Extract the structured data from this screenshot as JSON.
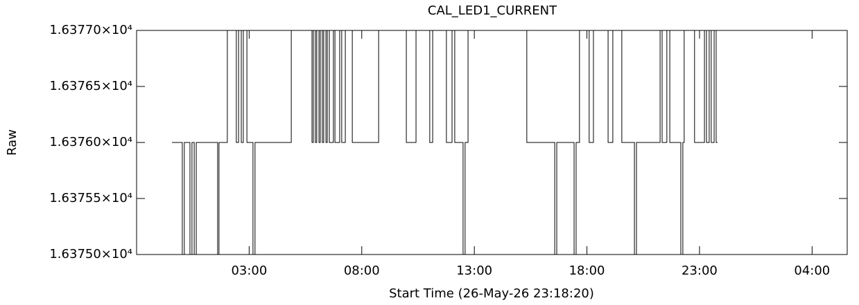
{
  "chart_data": {
    "type": "line",
    "step": "post",
    "title": "CAL_LED1_CURRENT",
    "x_label": "Start Time (26-May-26 23:18:20)",
    "y_label": "Raw",
    "xlim": [
      22,
      53.56
    ],
    "xticks": [
      {
        "value": 27,
        "label": "03:00"
      },
      {
        "value": 32,
        "label": "08:00"
      },
      {
        "value": 37,
        "label": "13:00"
      },
      {
        "value": 42,
        "label": "18:00"
      },
      {
        "value": 47,
        "label": "23:00"
      },
      {
        "value": 52,
        "label": "04:00"
      }
    ],
    "ylim": [
      16375,
      16377
    ],
    "yticks": [
      {
        "value": 16375,
        "label": "1.63750×10⁴"
      },
      {
        "value": 16375.5,
        "label": "1.63755×10⁴"
      },
      {
        "value": 16376,
        "label": "1.63760×10⁴"
      },
      {
        "value": 16376.5,
        "label": "1.63765×10⁴"
      },
      {
        "value": 16377,
        "label": "1.63770×10⁴"
      }
    ],
    "grid": false,
    "series": [
      {
        "name": "CAL_LED1_CURRENT",
        "color": "#000000",
        "x": [
          23.57,
          24.03,
          24.12,
          24.37,
          24.46,
          24.56,
          24.65,
          25.6,
          25.66,
          26.03,
          26.43,
          26.53,
          26.65,
          26.74,
          26.9,
          27.17,
          27.26,
          28.87,
          29.79,
          29.85,
          29.94,
          30.0,
          30.1,
          30.16,
          30.25,
          30.31,
          30.41,
          30.47,
          30.56,
          30.74,
          30.81,
          31.02,
          31.11,
          31.27,
          31.58,
          32.75,
          33.98,
          34.41,
          35.02,
          35.15,
          35.76,
          36.01,
          36.13,
          36.5,
          36.59,
          36.72,
          39.33,
          40.57,
          40.66,
          41.43,
          41.52,
          41.67,
          42.1,
          42.29,
          42.94,
          43.15,
          43.55,
          44.11,
          44.2,
          45.25,
          45.34,
          45.55,
          45.68,
          46.17,
          46.26,
          46.32,
          46.78,
          47.22,
          47.31,
          47.43,
          47.52,
          47.65,
          47.74,
          47.8
        ],
        "values": [
          16376,
          16375,
          16376,
          16375,
          16376,
          16375,
          16376,
          16375,
          16376,
          16377,
          16376,
          16377,
          16376,
          16377,
          16376,
          16375,
          16376,
          16377,
          16376,
          16377,
          16376,
          16377,
          16376,
          16377,
          16376,
          16377,
          16376,
          16377,
          16376,
          16377,
          16376,
          16377,
          16376,
          16377,
          16376,
          16377,
          16376,
          16377,
          16376,
          16377,
          16376,
          16377,
          16376,
          16375,
          16376,
          16377,
          16376,
          16375,
          16376,
          16375,
          16376,
          16377,
          16376,
          16377,
          16376,
          16377,
          16376,
          16375,
          16376,
          16377,
          16376,
          16377,
          16376,
          16375,
          16376,
          16377,
          16376,
          16377,
          16376,
          16377,
          16376,
          16377,
          16376,
          16376
        ]
      }
    ]
  }
}
